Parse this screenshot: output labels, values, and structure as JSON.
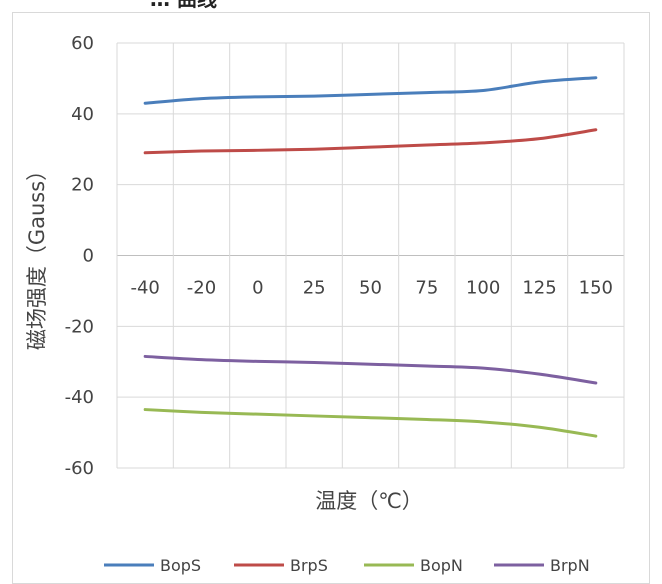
{
  "header": {
    "partial_title": "…                   曲线"
  },
  "chart_data": {
    "type": "line",
    "categories": [
      "-40",
      "-20",
      "0",
      "25",
      "50",
      "75",
      "100",
      "125",
      "150"
    ],
    "xlabel": "温度（℃）",
    "ylabel": "磁场强度（Gauss）",
    "ylim": [
      -60,
      60
    ],
    "yticks": [
      "60",
      "40",
      "20",
      "0",
      "-20",
      "-40",
      "-60"
    ],
    "grid": true,
    "legend": "bottom",
    "series": [
      {
        "name": "BopS",
        "color": "#4a7ebb",
        "values": [
          43,
          44.3,
          44.8,
          45,
          45.5,
          46,
          46.6,
          49,
          50.2
        ]
      },
      {
        "name": "BrpS",
        "color": "#be4b48",
        "values": [
          29,
          29.5,
          29.7,
          30,
          30.6,
          31.2,
          31.8,
          33,
          35.5
        ]
      },
      {
        "name": "BopN",
        "color": "#98b954",
        "values": [
          -43.5,
          -44.3,
          -44.8,
          -45.3,
          -45.8,
          -46.3,
          -47,
          -48.5,
          -51
        ]
      },
      {
        "name": "BrpN",
        "color": "#7d60a0",
        "values": [
          -28.5,
          -29.4,
          -29.9,
          -30.2,
          -30.7,
          -31.2,
          -31.8,
          -33.5,
          -36
        ]
      }
    ]
  }
}
